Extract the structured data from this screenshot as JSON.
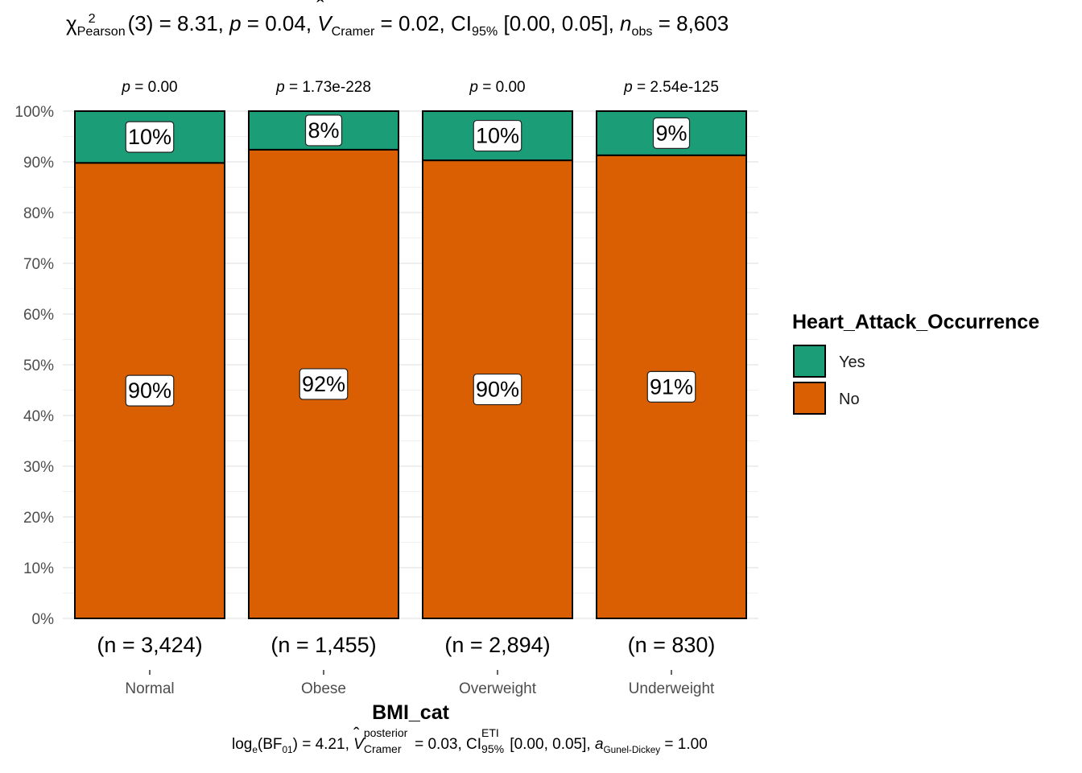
{
  "header": {
    "chi_symbol": "χ",
    "chi_sup": "2",
    "chi_sub": "Pearson",
    "df_text": "(3) = 8.31, ",
    "p_label": "p",
    "p_text": " = 0.04, ",
    "v_label": "V",
    "v_sub": "Cramer",
    "v_text": " = 0.02, CI",
    "ci_sub": "95%",
    "ci_text": " [0.00, 0.05], ",
    "n_label": "n",
    "n_sub": "obs",
    "n_text": " = 8,603"
  },
  "footer": {
    "log_text": "log",
    "log_sub": "e",
    "bf_text": "(BF",
    "bf_sub": "01",
    "bf_val": ") = 4.21, ",
    "v_label": "V",
    "v_sup": "posterior",
    "v_sub": "Cramer",
    "v_val": " = 0.03, CI",
    "ci_sup": "ETI",
    "ci_sub": "95%",
    "ci_val": " [0.00, 0.05], ",
    "a_label": "a",
    "a_sub": "Gunel-Dickey",
    "a_val": " = 1.00"
  },
  "legend": {
    "title": "Heart_Attack_Occurrence",
    "items": [
      {
        "label": "Yes",
        "color": "#1B9E77"
      },
      {
        "label": "No",
        "color": "#D95F02"
      }
    ]
  },
  "chart_data": {
    "type": "bar",
    "stacked": true,
    "percent": true,
    "categories": [
      "Normal",
      "Obese",
      "Overweight",
      "Underweight"
    ],
    "xlabel": "BMI_cat",
    "ylabel": "",
    "ylim": [
      0,
      100
    ],
    "yticks": [
      "0%",
      "10%",
      "20%",
      "30%",
      "40%",
      "50%",
      "60%",
      "70%",
      "80%",
      "90%",
      "100%"
    ],
    "series": [
      {
        "name": "No",
        "color": "#D95F02",
        "values": [
          89.8,
          92.4,
          90.3,
          91.3
        ],
        "labels": [
          "90%",
          "92%",
          "90%",
          "91%"
        ]
      },
      {
        "name": "Yes",
        "color": "#1B9E77",
        "values": [
          10.2,
          7.6,
          9.7,
          8.7
        ],
        "labels": [
          "10%",
          "8%",
          "10%",
          "9%"
        ]
      }
    ],
    "counts": [
      "(n = 3,424)",
      "(n = 1,455)",
      "(n = 2,894)",
      "(n = 830)"
    ],
    "pvalues": [
      "= 0.00",
      "= 1.73e-228",
      "= 0.00",
      "= 2.54e-125"
    ],
    "p_symbol": "p",
    "grid": true
  }
}
